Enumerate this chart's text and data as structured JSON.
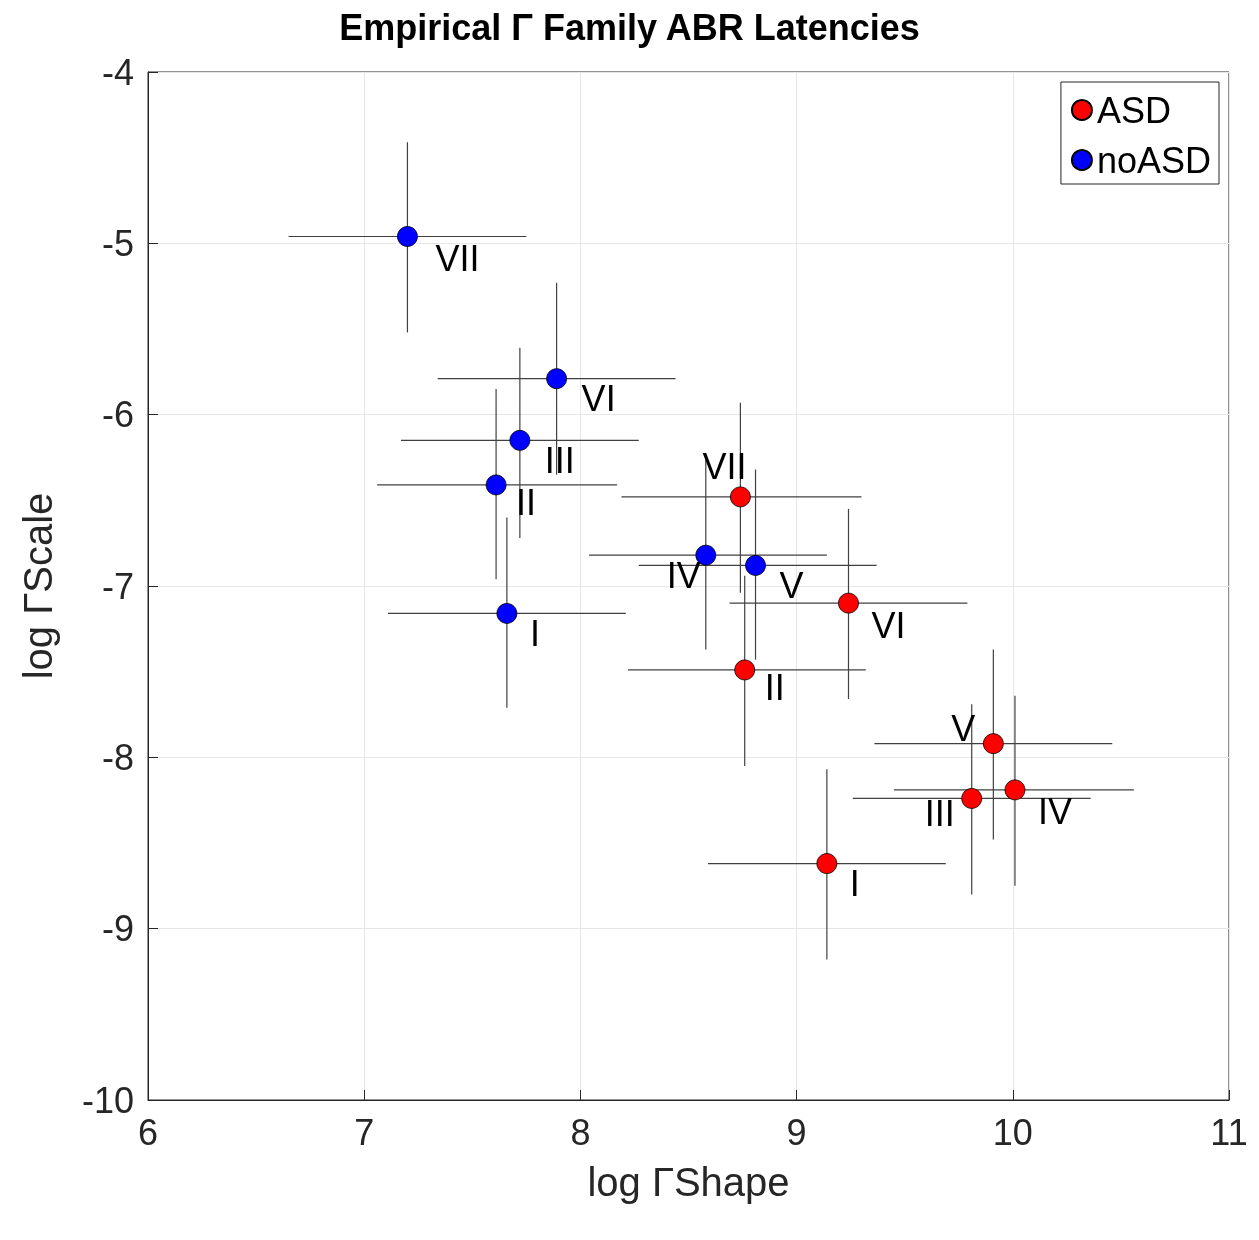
{
  "chart_data": {
    "type": "scatter",
    "title": "Empirical Γ Family ABR Latencies",
    "xlabel": "log ΓShape",
    "ylabel": "log ΓScale",
    "xlim": [
      6,
      11
    ],
    "xticks": [
      6,
      7,
      8,
      9,
      10,
      11
    ],
    "ylim": [
      -10,
      -4
    ],
    "yticks": [
      -10,
      -9,
      -8,
      -7,
      -6,
      -5,
      -4
    ],
    "grid": true,
    "legend": "top right",
    "marker": "circle",
    "series": [
      {
        "name": "ASD",
        "color": "#ff0000",
        "x": [
          9.14,
          8.76,
          9.81,
          10.01,
          9.91,
          9.24,
          8.74
        ],
        "values": [
          -8.62,
          -7.49,
          -8.24,
          -8.19,
          -7.92,
          -7.1,
          -6.48
        ],
        "value_labels": [
          "I",
          "II",
          "III",
          "IV",
          "V",
          "VI",
          "VII"
        ],
        "xerrors": [
          [
            8.59,
            9.69
          ],
          [
            8.22,
            9.32
          ],
          [
            9.26,
            10.36
          ],
          [
            9.45,
            10.56
          ],
          [
            9.36,
            10.46
          ],
          [
            8.69,
            9.79
          ],
          [
            8.19,
            9.3
          ]
        ],
        "errors": [
          [
            -9.18,
            -8.07
          ],
          [
            -8.05,
            -6.94
          ],
          [
            -8.8,
            -7.69
          ],
          [
            -8.75,
            -7.64
          ],
          [
            -8.48,
            -7.37
          ],
          [
            -7.66,
            -6.55
          ],
          [
            -7.04,
            -5.93
          ]
        ]
      },
      {
        "name": "noASD",
        "color": "#0000ff",
        "x": [
          7.66,
          7.61,
          7.72,
          8.58,
          8.81,
          7.89,
          7.2
        ],
        "values": [
          -7.16,
          -6.41,
          -6.15,
          -6.82,
          -6.88,
          -5.79,
          -4.96
        ],
        "value_labels": [
          "I",
          "II",
          "III",
          "IV",
          "V",
          "VI",
          "VII"
        ],
        "xerrors": [
          [
            7.11,
            8.21
          ],
          [
            7.06,
            8.17
          ],
          [
            7.17,
            8.27
          ],
          [
            8.04,
            9.14
          ],
          [
            8.27,
            9.37
          ],
          [
            7.34,
            8.44
          ],
          [
            6.65,
            7.75
          ]
        ],
        "errors": [
          [
            -7.71,
            -6.6
          ],
          [
            -6.96,
            -5.85
          ],
          [
            -6.72,
            -5.61
          ],
          [
            -7.37,
            -6.26
          ],
          [
            -7.43,
            -6.32
          ],
          [
            -6.35,
            -5.23
          ],
          [
            -5.52,
            -4.41
          ]
        ]
      }
    ]
  }
}
